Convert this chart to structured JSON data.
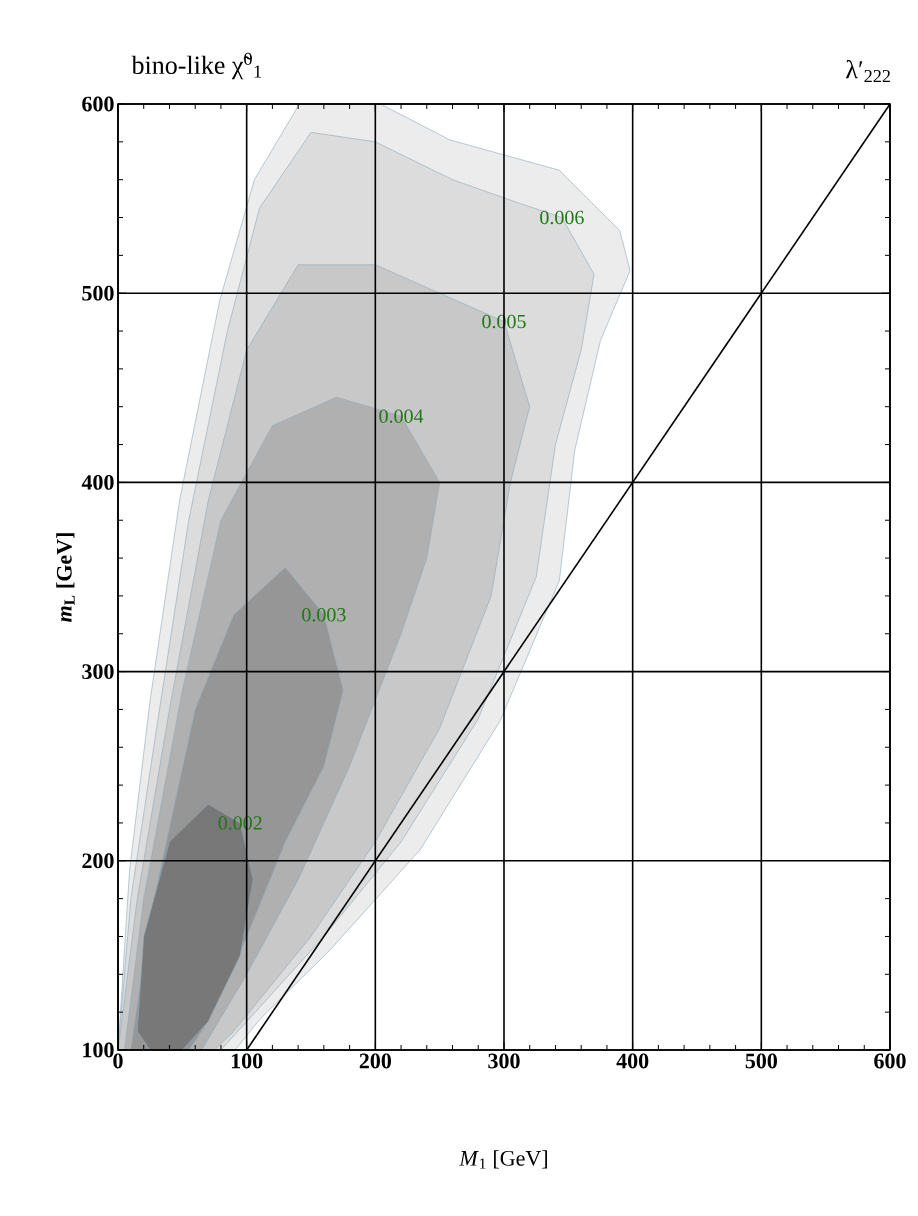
{
  "chart_data": {
    "type": "area",
    "title": "bino-like χ̃$^{0}$$_{1}$",
    "xlabel": "*M*$_{1}$ [GeV]",
    "ylabel": "*m*$_{L}$ [GeV]",
    "annotations": [
      "λ′$_{222}$"
    ],
    "xlim": [
      0,
      600
    ],
    "ylim": [
      100,
      600
    ],
    "xticks": [
      0,
      100,
      200,
      300,
      400,
      500,
      600
    ],
    "yticks": [
      100,
      200,
      300,
      400,
      500,
      600
    ],
    "grid": true,
    "series": [
      {
        "color": "#ececec",
        "x": [
          0,
          9,
          25,
          48,
          79,
          106,
          141,
          204,
          258,
          343,
          390,
          398,
          375,
          355,
          343,
          297,
          235,
          165,
          110,
          91
        ],
        "values": [
          100,
          195,
          285,
          391,
          496,
          560,
          600,
          600,
          581,
          565,
          533,
          512,
          475,
          417,
          348,
          274,
          206,
          153,
          116,
          100
        ]
      },
      {
        "name": "0.006",
        "color": "#dcdcdc",
        "x": [
          0,
          10,
          30,
          55,
          85,
          110,
          150,
          200,
          260,
          310,
          345,
          370,
          360,
          340,
          325,
          280,
          220,
          160,
          100,
          80
        ],
        "values": [
          100,
          180,
          270,
          380,
          480,
          545,
          585,
          580,
          560,
          548,
          540,
          510,
          470,
          420,
          350,
          275,
          210,
          160,
          115,
          100
        ]
      },
      {
        "name": "0.005",
        "color": "#c8c8c8",
        "x": [
          0,
          15,
          40,
          70,
          100,
          140,
          200,
          250,
          300,
          320,
          305,
          290,
          250,
          200,
          150,
          90,
          75
        ],
        "values": [
          100,
          180,
          280,
          390,
          470,
          515,
          515,
          500,
          485,
          440,
          400,
          340,
          270,
          210,
          160,
          110,
          100
        ]
      },
      {
        "name": "0.004",
        "color": "#b0b0b0",
        "x": [
          5,
          20,
          50,
          80,
          120,
          170,
          220,
          250,
          240,
          220,
          180,
          140,
          100,
          65
        ],
        "values": [
          100,
          180,
          290,
          380,
          430,
          445,
          435,
          400,
          360,
          320,
          250,
          190,
          140,
          100
        ]
      },
      {
        "name": "0.003",
        "color": "#969696",
        "x": [
          10,
          25,
          60,
          90,
          130,
          160,
          175,
          160,
          130,
          100,
          70,
          55
        ],
        "values": [
          100,
          170,
          280,
          330,
          355,
          330,
          290,
          250,
          210,
          160,
          115,
          100
        ]
      },
      {
        "name": "0.002",
        "color": "#787878",
        "x": [
          15,
          20,
          40,
          70,
          95,
          105,
          95,
          70,
          50,
          25
        ],
        "values": [
          110,
          160,
          210,
          230,
          220,
          190,
          150,
          115,
          100,
          100
        ]
      },
      {
        "type": "line",
        "color": "#000000",
        "x": [
          100,
          600
        ],
        "values": [
          100,
          600
        ]
      }
    ]
  }
}
